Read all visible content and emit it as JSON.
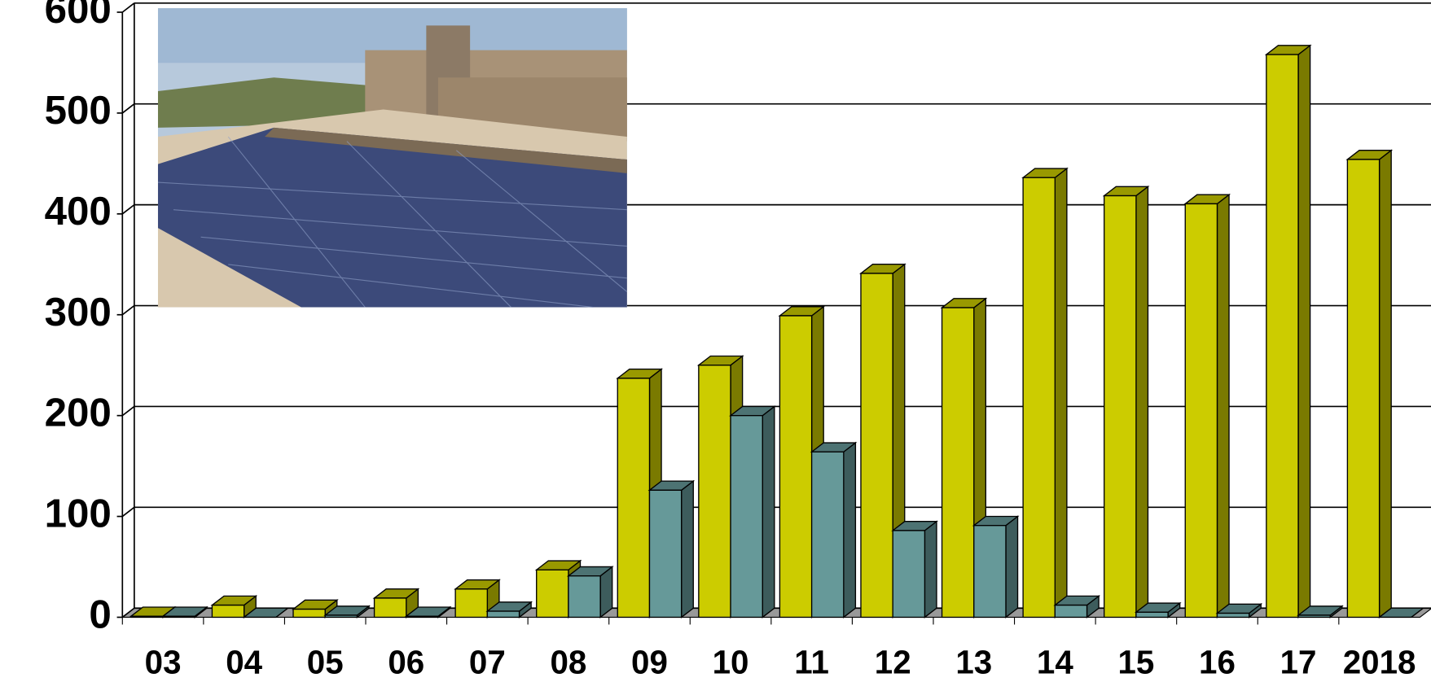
{
  "chart_data": {
    "type": "bar3d",
    "categories": [
      "03",
      "04",
      "05",
      "06",
      "07",
      "08",
      "09",
      "10",
      "11",
      "12",
      "13",
      "14",
      "15",
      "16",
      "17",
      "2018"
    ],
    "series": [
      {
        "color": "#cccc00",
        "values": [
          1,
          12,
          8,
          19,
          28,
          47,
          237,
          250,
          299,
          341,
          307,
          436,
          418,
          410,
          558,
          454
        ]
      },
      {
        "color": "#669999",
        "values": [
          1,
          0,
          2,
          1,
          6,
          41,
          126,
          200,
          164,
          86,
          91,
          12,
          5,
          4,
          2,
          0
        ]
      }
    ],
    "ylim": [
      0,
      600
    ],
    "yticks": [
      0,
      100,
      200,
      300,
      400,
      500,
      600
    ],
    "grid": true
  }
}
